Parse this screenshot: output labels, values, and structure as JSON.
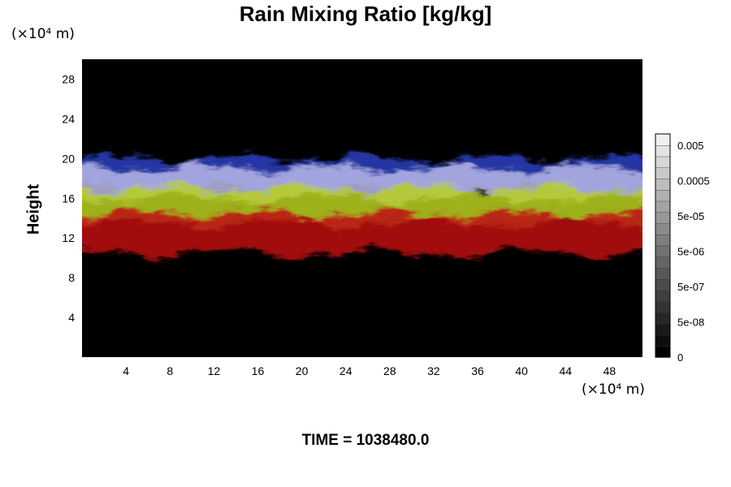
{
  "chart_data": {
    "type": "heatmap",
    "title": "Rain Mixing Ratio [kg/kg]",
    "ylabel": "Height",
    "y_units": "(×10⁴ m)",
    "x_units": "(×10⁴ m)",
    "x_ticks": [
      4,
      8,
      12,
      16,
      20,
      24,
      28,
      32,
      36,
      40,
      44,
      48
    ],
    "y_ticks": [
      4,
      8,
      12,
      16,
      20,
      24,
      28
    ],
    "xlim": [
      0,
      51
    ],
    "ylim": [
      0,
      30
    ],
    "colorbar": {
      "tick_labels": [
        "0.005",
        "0.0005",
        "5e-05",
        "5e-06",
        "5e-07",
        "5e-08",
        "0"
      ],
      "levels": 20,
      "min_color": "#000000",
      "max_color": "#f0f0f0"
    },
    "background_color": "#000000",
    "layers": [
      {
        "color": "#2a3fc0",
        "y_range": [
          17,
          20
        ]
      },
      {
        "color": "#b8b8e8",
        "y_range": [
          16,
          19
        ]
      },
      {
        "color": "#b8d020",
        "y_range": [
          13.5,
          17
        ]
      },
      {
        "color": "#c01010",
        "y_range": [
          10.5,
          14.5
        ]
      }
    ]
  },
  "footer": {
    "time_text": "TIME = 1038480.0"
  }
}
